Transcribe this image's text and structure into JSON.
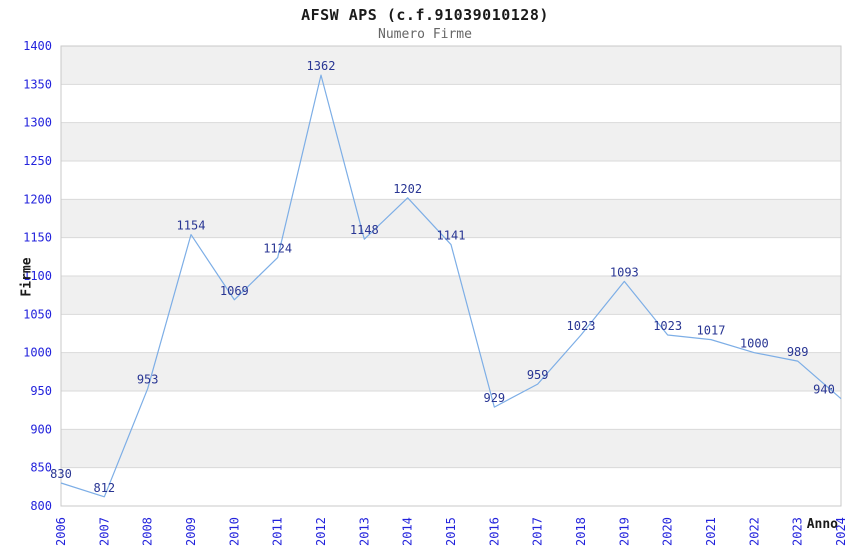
{
  "chart_data": {
    "type": "line",
    "title": "AFSW APS (c.f.91039010128)",
    "subtitle": "Numero Firme",
    "xlabel": "Anno",
    "ylabel": "Firme",
    "categories": [
      "2006",
      "2007",
      "2008",
      "2009",
      "2010",
      "2011",
      "2012",
      "2013",
      "2014",
      "2015",
      "2016",
      "2017",
      "2018",
      "2019",
      "2020",
      "2021",
      "2022",
      "2023",
      "2024"
    ],
    "values": [
      830,
      812,
      953,
      1154,
      1069,
      1124,
      1362,
      1148,
      1202,
      1141,
      929,
      959,
      1023,
      1093,
      1023,
      1017,
      1000,
      989,
      940
    ],
    "ylim": [
      800,
      1400
    ],
    "ytick_step": 50,
    "grid": true,
    "legend": "none",
    "layout_hints": {
      "alternating_horizontal_bands": true,
      "x_tick_rotation_deg": -90,
      "data_labels_shown": true
    },
    "colors": {
      "line": "#7daee6",
      "tick_label": "#2323dc",
      "data_label": "#283593",
      "band": "#f0f0f0",
      "grid_line": "#dadada",
      "plot_border": "#c9c9c9",
      "title": "#1a1a1a",
      "subtitle": "#666666",
      "axis_label": "#1a1a1a",
      "background": "#ffffff"
    }
  }
}
